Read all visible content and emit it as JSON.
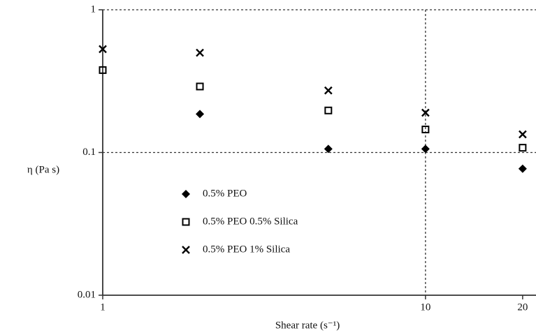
{
  "chart_data": {
    "type": "scatter",
    "x_label": "Shear rate (s⁻¹)",
    "y_label": "η (Pa s)",
    "x": [
      1,
      2,
      5,
      10,
      20
    ],
    "series": [
      {
        "name": "0.5% PEO",
        "color": "#000000",
        "marker": "diamond",
        "values": [
          null,
          0.186,
          0.106,
          0.106,
          0.077
        ]
      },
      {
        "name": "0.5% PEO 0.5% Silica",
        "color": "#000000",
        "marker": "square",
        "values": [
          0.378,
          0.29,
          0.197,
          0.145,
          0.108
        ]
      },
      {
        "name": "0.5% PEO 1% Silica",
        "color": "#000000",
        "marker": "x",
        "values": [
          0.53,
          0.5,
          0.272,
          0.19,
          0.134
        ]
      }
    ],
    "xlim": [
      1,
      22
    ],
    "ylim": [
      0.01,
      1
    ],
    "xticks": [
      1,
      10,
      20
    ],
    "yticks": [
      0.01,
      0.1,
      1
    ],
    "xscale": "log",
    "yscale": "log",
    "grid": true
  }
}
